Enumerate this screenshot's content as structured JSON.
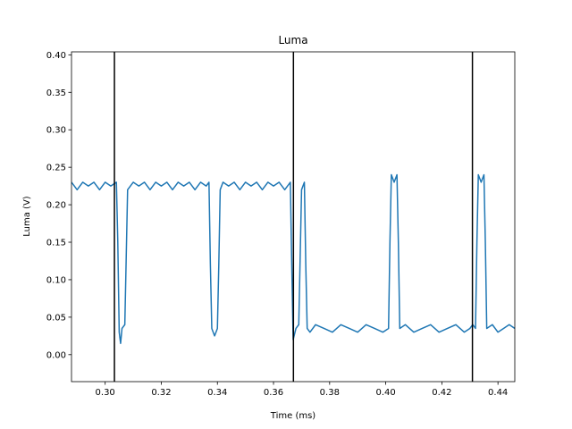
{
  "chart_data": {
    "type": "line",
    "title": "Luma",
    "xlabel": "Time (ms)",
    "ylabel": "Luma (V)",
    "xlim": [
      0.288,
      0.446
    ],
    "ylim": [
      -0.036,
      0.404
    ],
    "xticks": [
      0.3,
      0.32,
      0.34,
      0.36,
      0.38,
      0.4,
      0.42,
      0.44
    ],
    "xtick_labels": [
      "0.30",
      "0.32",
      "0.34",
      "0.36",
      "0.38",
      "0.40",
      "0.42",
      "0.44"
    ],
    "yticks": [
      0.0,
      0.05,
      0.1,
      0.15,
      0.2,
      0.25,
      0.3,
      0.35,
      0.4
    ],
    "ytick_labels": [
      "0.00",
      "0.05",
      "0.10",
      "0.15",
      "0.20",
      "0.25",
      "0.30",
      "0.35",
      "0.40"
    ],
    "grid": false,
    "line_color": "#1f77b4",
    "vline_color": "#000000",
    "vlines": [
      0.3033,
      0.3671,
      0.4309
    ],
    "series": [
      {
        "x": [
          0.288,
          0.29,
          0.292,
          0.294,
          0.296,
          0.298,
          0.3,
          0.302,
          0.304,
          0.3045,
          0.305,
          0.3055,
          0.306,
          0.307,
          0.3075,
          0.308,
          0.31,
          0.312,
          0.314,
          0.316,
          0.318,
          0.32,
          0.322,
          0.324,
          0.326,
          0.328,
          0.33,
          0.332,
          0.334,
          0.336,
          0.337,
          0.3375,
          0.338,
          0.339,
          0.34,
          0.3405,
          0.341,
          0.342,
          0.344,
          0.346,
          0.348,
          0.35,
          0.352,
          0.354,
          0.356,
          0.358,
          0.36,
          0.362,
          0.364,
          0.366,
          0.3665,
          0.367,
          0.368,
          0.369,
          0.37,
          0.371,
          0.3715,
          0.372,
          0.373,
          0.375,
          0.378,
          0.381,
          0.384,
          0.387,
          0.39,
          0.393,
          0.396,
          0.399,
          0.401,
          0.4015,
          0.402,
          0.403,
          0.404,
          0.4045,
          0.405,
          0.407,
          0.41,
          0.413,
          0.416,
          0.419,
          0.422,
          0.425,
          0.428,
          0.43,
          0.431,
          0.432,
          0.4325,
          0.433,
          0.434,
          0.435,
          0.4355,
          0.436,
          0.438,
          0.44,
          0.442,
          0.444,
          0.446
        ],
        "y": [
          0.23,
          0.22,
          0.23,
          0.225,
          0.23,
          0.22,
          0.23,
          0.225,
          0.23,
          0.15,
          0.03,
          0.015,
          0.035,
          0.04,
          0.13,
          0.22,
          0.23,
          0.225,
          0.23,
          0.22,
          0.23,
          0.225,
          0.23,
          0.22,
          0.23,
          0.225,
          0.23,
          0.22,
          0.23,
          0.225,
          0.23,
          0.12,
          0.035,
          0.025,
          0.035,
          0.12,
          0.22,
          0.23,
          0.225,
          0.23,
          0.22,
          0.23,
          0.225,
          0.23,
          0.22,
          0.23,
          0.225,
          0.23,
          0.22,
          0.23,
          0.12,
          0.02,
          0.035,
          0.04,
          0.22,
          0.23,
          0.12,
          0.035,
          0.03,
          0.04,
          0.035,
          0.03,
          0.04,
          0.035,
          0.03,
          0.04,
          0.035,
          0.03,
          0.035,
          0.15,
          0.24,
          0.23,
          0.24,
          0.15,
          0.035,
          0.04,
          0.03,
          0.035,
          0.04,
          0.03,
          0.035,
          0.04,
          0.03,
          0.035,
          0.04,
          0.035,
          0.15,
          0.24,
          0.23,
          0.24,
          0.15,
          0.035,
          0.04,
          0.03,
          0.035,
          0.04,
          0.035
        ]
      }
    ]
  }
}
